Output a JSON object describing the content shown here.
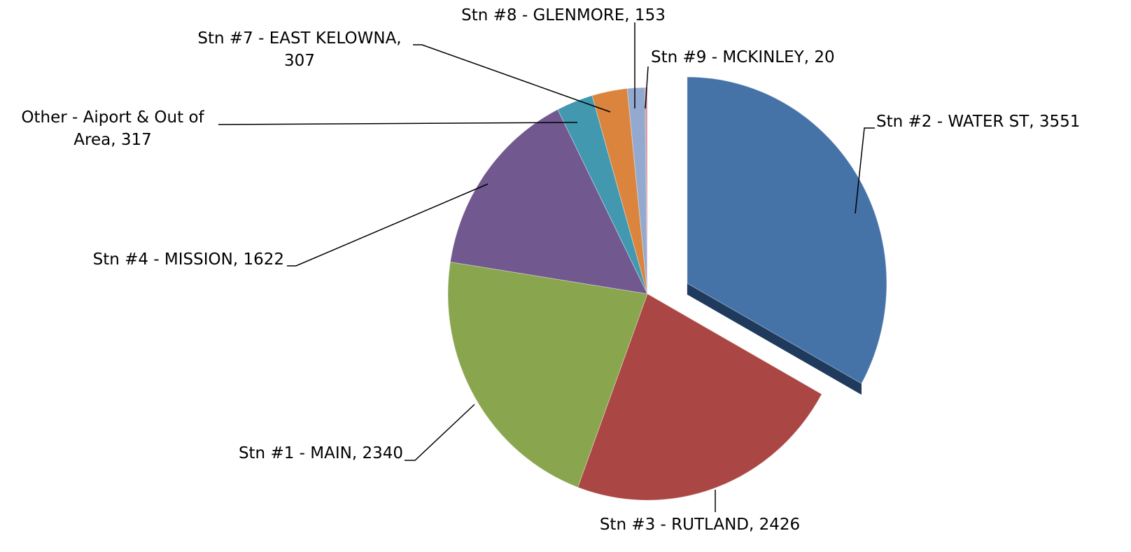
{
  "chart_data": {
    "type": "pie",
    "labels": [
      "Stn #2 - WATER ST, 3551",
      "Stn #3 - RUTLAND, 2426",
      "Stn #1 - MAIN, 2340",
      "Stn #4 - MISSION, 1622",
      "Other - Aiport & Out of Area, 317",
      "Stn #7 - EAST KELOWNA, 307",
      "Stn #8 - GLENMORE, 153",
      "Stn #9 - MCKINLEY, 20"
    ],
    "values": [
      3551,
      2426,
      2340,
      1622,
      317,
      307,
      153,
      20
    ],
    "colors": [
      "#4572a7",
      "#aa4643",
      "#89a54e",
      "#71588f",
      "#4198af",
      "#db843d",
      "#93a9cf",
      "#d19392"
    ],
    "exploded": [
      0
    ]
  }
}
